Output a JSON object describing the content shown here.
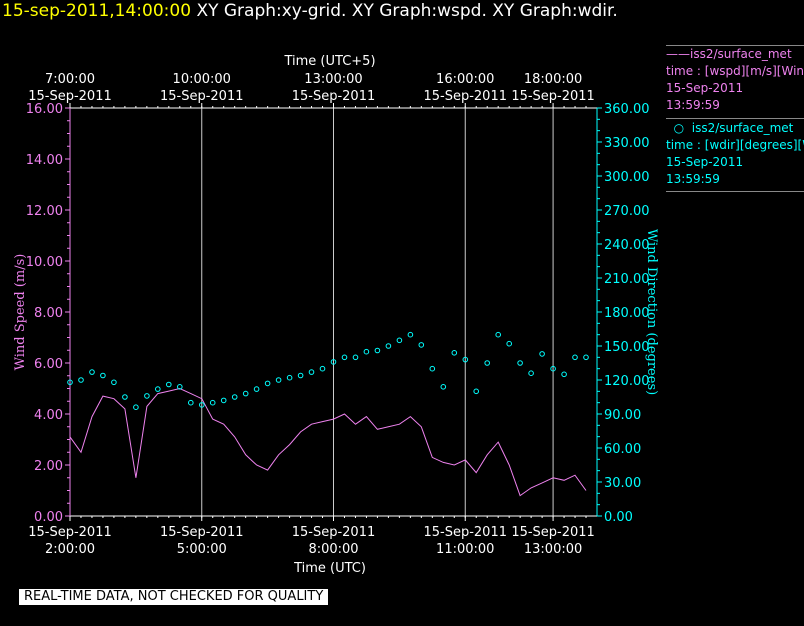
{
  "header": {
    "timestamp": "15-sep-2011,14:00:00",
    "titles": "XY Graph:xy-grid.  XY Graph:wspd.  XY Graph:wdir."
  },
  "legend": {
    "wspd": {
      "name": "iss2/surface_met",
      "line2": "time : [wspd][m/s][Wind Speed]",
      "date": "15-Sep-2011",
      "time": "13:59:59",
      "color": "#ee82ee"
    },
    "wdir": {
      "name": "iss2/surface_met",
      "line2": "time : [wdir][degrees][Wind Direction]",
      "date": "15-Sep-2011",
      "time": "13:59:59",
      "color": "#00ffff"
    }
  },
  "disclaimer": "REAL-TIME DATA, NOT CHECKED FOR QUALITY",
  "chart_data": {
    "type": "line",
    "grid": true,
    "x_top": {
      "label": "Time (UTC+5)",
      "ticks": [
        {
          "t": "7:00:00",
          "d": "15-Sep-2011",
          "h": 2
        },
        {
          "t": "10:00:00",
          "d": "15-Sep-2011",
          "h": 5
        },
        {
          "t": "13:00:00",
          "d": "15-Sep-2011",
          "h": 8
        },
        {
          "t": "16:00:00",
          "d": "15-Sep-2011",
          "h": 11
        },
        {
          "t": "18:00:00",
          "d": "15-Sep-2011",
          "h": 13
        }
      ]
    },
    "x_bottom": {
      "label": "Time (UTC)",
      "ticks": [
        {
          "t": "2:00:00",
          "d": "15-Sep-2011",
          "h": 2
        },
        {
          "t": "5:00:00",
          "d": "15-Sep-2011",
          "h": 5
        },
        {
          "t": "8:00:00",
          "d": "15-Sep-2011",
          "h": 8
        },
        {
          "t": "11:00:00",
          "d": "15-Sep-2011",
          "h": 11
        },
        {
          "t": "13:00:00",
          "d": "15-Sep-2011",
          "h": 13
        }
      ]
    },
    "xlim": [
      2.0,
      14.0
    ],
    "y_left": {
      "label": "Wind Speed (m/s)",
      "ylim": [
        0,
        16
      ],
      "ticks": [
        "0.00",
        "2.00",
        "4.00",
        "6.00",
        "8.00",
        "10.00",
        "12.00",
        "14.00",
        "16.00"
      ],
      "color": "#ee82ee"
    },
    "y_right": {
      "label": "Wind Direction (degrees)",
      "ylim": [
        0,
        360
      ],
      "ticks": [
        "0.00",
        "30.00",
        "60.00",
        "90.00",
        "120.00",
        "150.00",
        "180.00",
        "210.00",
        "240.00",
        "270.00",
        "300.00",
        "330.00",
        "360.00"
      ],
      "color": "#00ffff"
    },
    "series": [
      {
        "name": "iss2/surface_met",
        "variable": "wspd",
        "style": "line",
        "axis": "left",
        "x_hours": [
          2.0,
          2.25,
          2.5,
          2.75,
          3.0,
          3.25,
          3.5,
          3.75,
          4.0,
          4.25,
          4.5,
          4.75,
          5.0,
          5.25,
          5.5,
          5.75,
          6.0,
          6.25,
          6.5,
          6.75,
          7.0,
          7.25,
          7.5,
          7.75,
          8.0,
          8.25,
          8.5,
          8.75,
          9.0,
          9.25,
          9.5,
          9.75,
          10.0,
          10.25,
          10.5,
          10.75,
          11.0,
          11.25,
          11.5,
          11.75,
          12.0,
          12.25,
          12.5,
          12.75,
          13.0,
          13.25,
          13.5,
          13.75
        ],
        "values": [
          3.1,
          2.5,
          3.9,
          4.7,
          4.6,
          4.2,
          1.5,
          4.3,
          4.8,
          4.9,
          5.0,
          4.8,
          4.6,
          3.8,
          3.6,
          3.1,
          2.4,
          2.0,
          1.8,
          2.4,
          2.8,
          3.3,
          3.6,
          3.7,
          3.8,
          4.0,
          3.6,
          3.9,
          3.4,
          3.5,
          3.6,
          3.9,
          3.5,
          2.3,
          2.1,
          2.0,
          2.2,
          1.7,
          2.4,
          2.9,
          2.0,
          0.8,
          1.1,
          1.3,
          1.5,
          1.4,
          1.6,
          1.0
        ]
      },
      {
        "name": "iss2/surface_met",
        "variable": "wdir",
        "style": "circles",
        "axis": "right",
        "x_hours": [
          2.0,
          2.25,
          2.5,
          2.75,
          3.0,
          3.25,
          3.5,
          3.75,
          4.0,
          4.25,
          4.5,
          4.75,
          5.0,
          5.25,
          5.5,
          5.75,
          6.0,
          6.25,
          6.5,
          6.75,
          7.0,
          7.25,
          7.5,
          7.75,
          8.0,
          8.25,
          8.5,
          8.75,
          9.0,
          9.25,
          9.5,
          9.75,
          10.0,
          10.25,
          10.5,
          10.75,
          11.0,
          11.25,
          11.5,
          11.75,
          12.0,
          12.25,
          12.5,
          12.75,
          13.0,
          13.25,
          13.5,
          13.75
        ],
        "values": [
          118,
          120,
          127,
          124,
          118,
          105,
          96,
          106,
          112,
          116,
          114,
          100,
          98,
          100,
          102,
          105,
          108,
          112,
          117,
          120,
          122,
          124,
          127,
          130,
          136,
          140,
          140,
          145,
          146,
          150,
          155,
          160,
          151,
          130,
          114,
          144,
          138,
          110,
          135,
          160,
          152,
          135,
          126,
          143,
          130,
          125,
          140,
          140
        ]
      }
    ]
  }
}
